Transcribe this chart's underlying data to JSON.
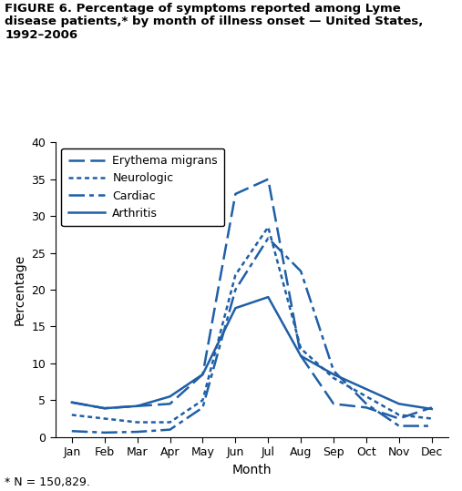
{
  "title_line1": "FIGURE 6. Percentage of symptoms reported among Lyme",
  "title_line2": "disease patients,* by month of illness onset — United States,",
  "title_line3": "1992–2006",
  "footnote": "* N = 150,829.",
  "xlabel": "Month",
  "ylabel": "Percentage",
  "months": [
    "Jan",
    "Feb",
    "Mar",
    "Apr",
    "May",
    "Jun",
    "Jul",
    "Aug",
    "Sep",
    "Oct",
    "Nov",
    "Dec"
  ],
  "erythema_migrans": [
    4.7,
    3.9,
    4.2,
    4.5,
    8.5,
    33.0,
    35.0,
    11.0,
    4.5,
    4.0,
    2.5,
    4.0
  ],
  "neurologic": [
    3.0,
    2.5,
    2.0,
    2.0,
    5.0,
    22.0,
    28.5,
    12.0,
    8.0,
    5.5,
    3.0,
    2.5
  ],
  "cardiac": [
    0.8,
    0.6,
    0.7,
    1.0,
    4.0,
    20.0,
    27.0,
    22.5,
    9.0,
    4.5,
    1.5,
    1.5
  ],
  "arthritis": [
    4.7,
    3.9,
    4.2,
    5.5,
    8.5,
    17.5,
    19.0,
    11.0,
    8.5,
    6.5,
    4.5,
    3.8
  ],
  "ylim": [
    0,
    40
  ],
  "yticks": [
    0,
    5,
    10,
    15,
    20,
    25,
    30,
    35,
    40
  ],
  "color": "#1f5fa6",
  "line_width": 1.8
}
